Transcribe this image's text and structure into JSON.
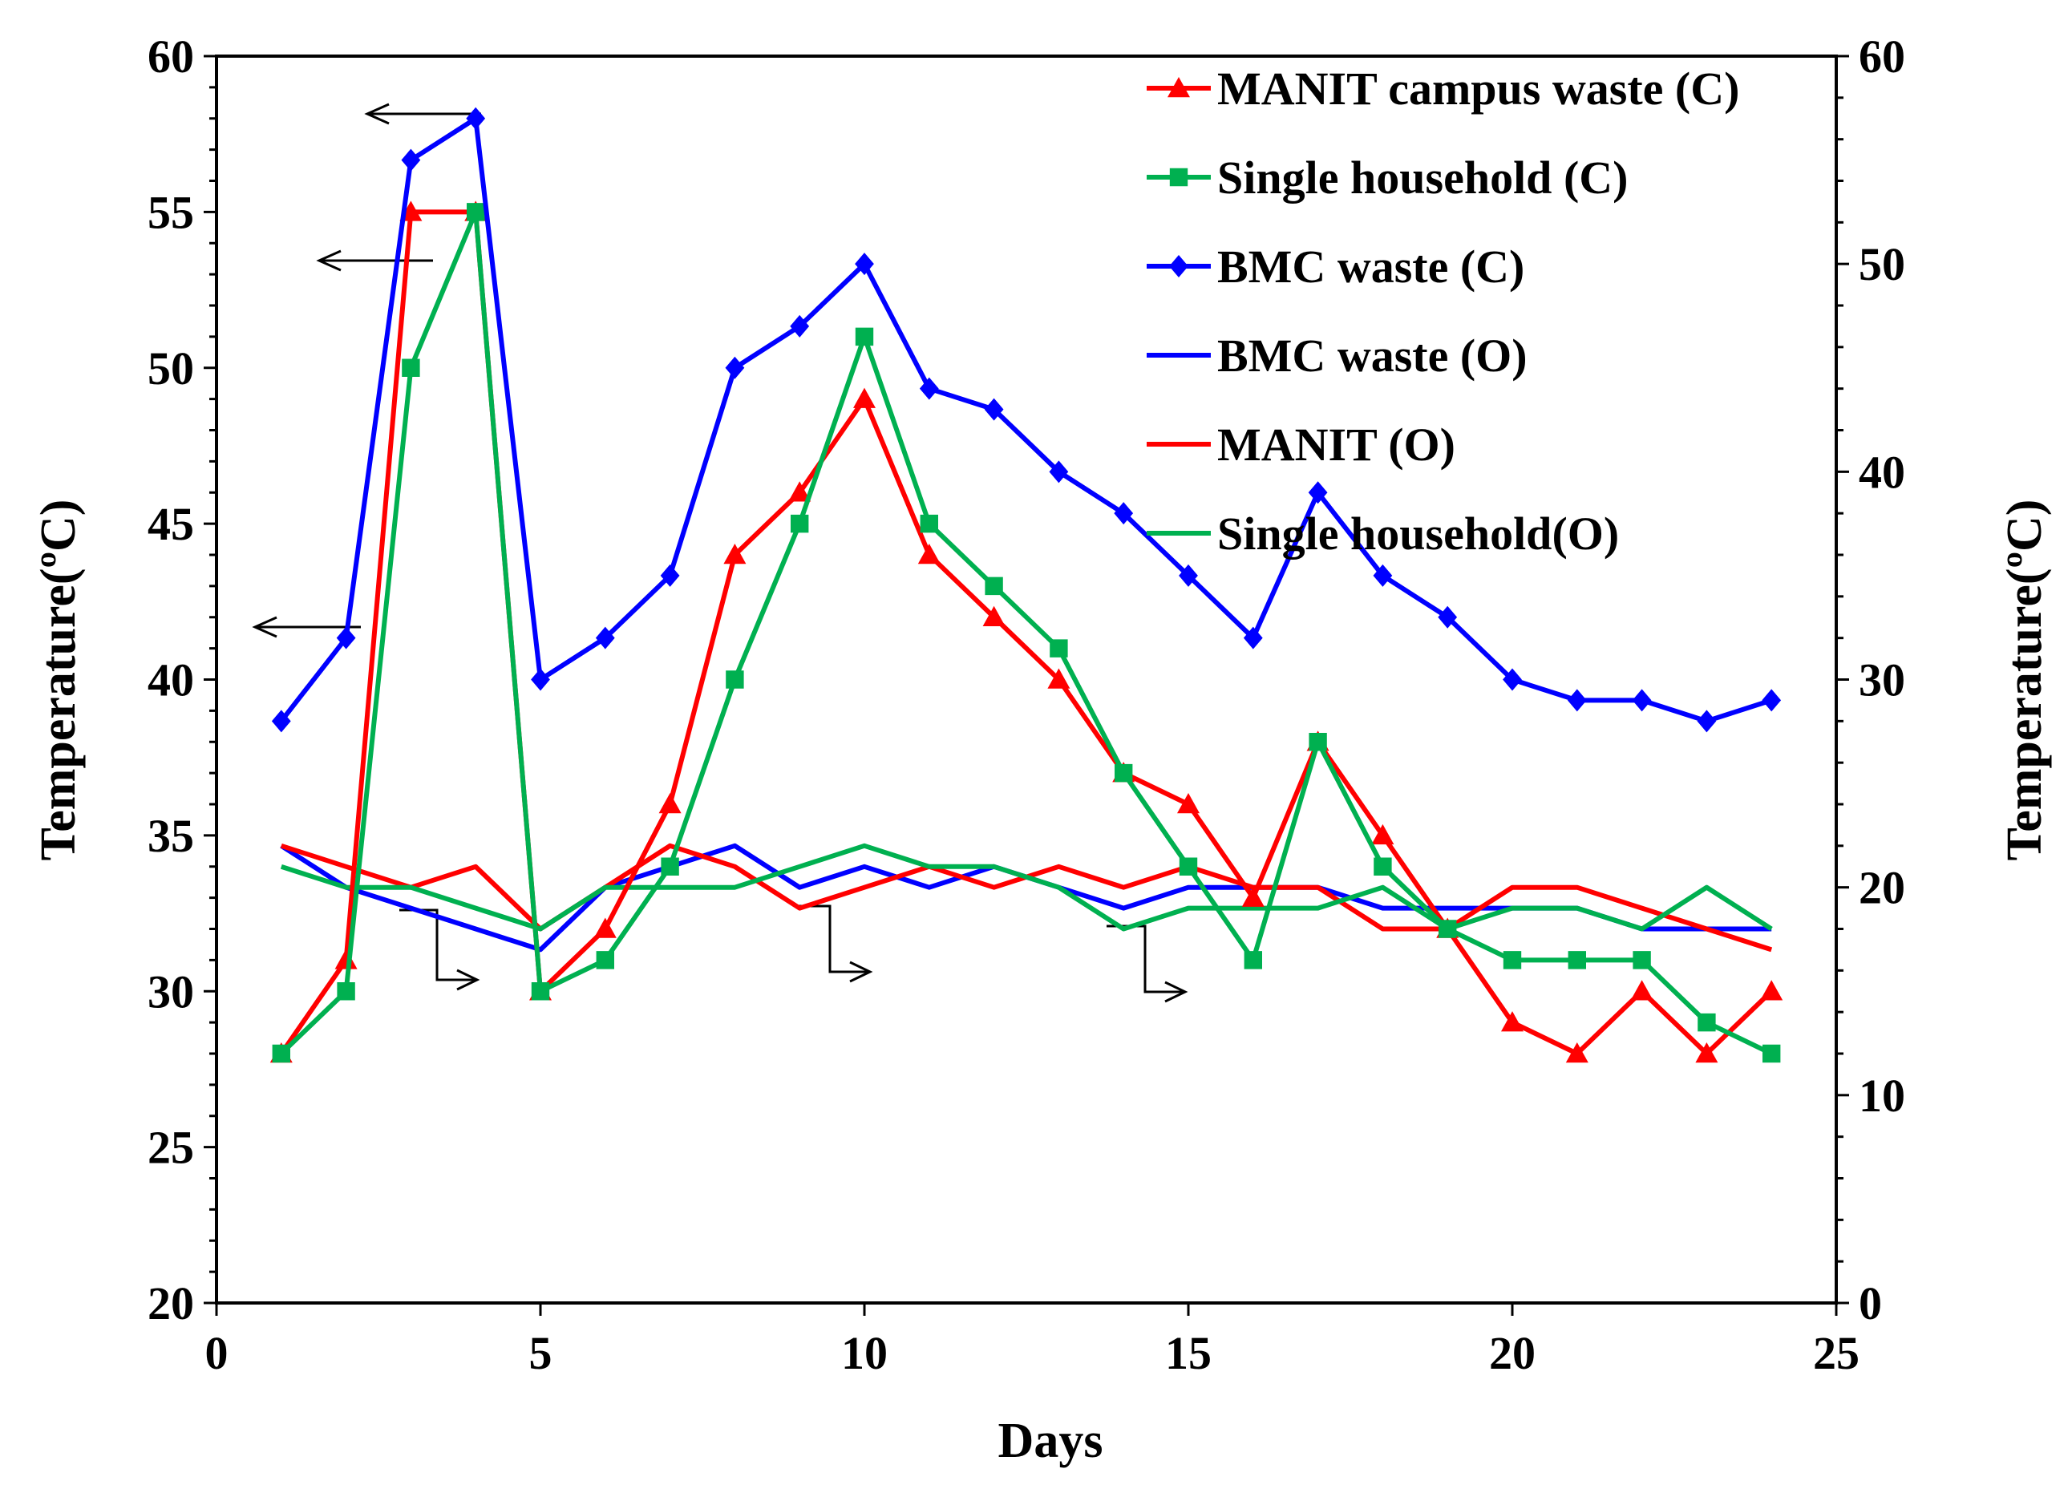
{
  "chart_data": {
    "type": "line",
    "xlabel": "Days",
    "ylabel_left": "Temperature(ºC)",
    "ylabel_right": "Temperature(ºC)",
    "xlim": [
      0,
      25
    ],
    "ylim_left": [
      20,
      60
    ],
    "ylim_right": [
      0,
      60
    ],
    "xticks": [
      0,
      5,
      10,
      15,
      20,
      25
    ],
    "yticks_left": [
      20,
      25,
      30,
      35,
      40,
      45,
      50,
      55,
      60
    ],
    "yticks_right": [
      0,
      10,
      20,
      30,
      40,
      50,
      60
    ],
    "grid": false,
    "legend_position": "top-right",
    "x": [
      1,
      2,
      3,
      4,
      5,
      6,
      7,
      8,
      9,
      10,
      11,
      12,
      13,
      14,
      15,
      16,
      17,
      18,
      19,
      20,
      21,
      22,
      23,
      24
    ],
    "series": [
      {
        "name": "MANIT campus waste (C)",
        "axis": "left",
        "color": "#ff0000",
        "marker": "triangle",
        "values": [
          28,
          31,
          55,
          55,
          30,
          32,
          36,
          44,
          46,
          49,
          44,
          42,
          40,
          37,
          36,
          33,
          38,
          35,
          32,
          29,
          28,
          30,
          28,
          30
        ]
      },
      {
        "name": "Single household (C)",
        "axis": "left",
        "color": "#00b050",
        "marker": "square",
        "values": [
          28,
          30,
          50,
          55,
          30,
          31,
          34,
          40,
          45,
          51,
          45,
          43,
          41,
          37,
          34,
          31,
          38,
          34,
          32,
          31,
          31,
          31,
          29,
          28
        ]
      },
      {
        "name": "BMC waste (C)",
        "axis": "right",
        "color": "#0000ff",
        "marker": "diamond",
        "values": [
          28,
          32,
          55,
          57,
          30,
          32,
          35,
          45,
          47,
          50,
          44,
          43,
          40,
          38,
          35,
          32,
          39,
          35,
          33,
          30,
          29,
          29,
          28,
          29
        ]
      },
      {
        "name": "BMC waste (O)",
        "axis": "right",
        "color": "#0000ff",
        "marker": "none",
        "values": [
          22,
          20,
          19,
          18,
          17,
          20,
          21,
          22,
          20,
          21,
          20,
          21,
          20,
          19,
          20,
          20,
          20,
          19,
          19,
          19,
          19,
          18,
          18,
          18
        ]
      },
      {
        "name": "MANIT (O)",
        "axis": "right",
        "color": "#ff0000",
        "marker": "none",
        "values": [
          22,
          21,
          20,
          21,
          18,
          20,
          22,
          21,
          19,
          20,
          21,
          20,
          21,
          20,
          21,
          20,
          20,
          18,
          18,
          20,
          20,
          19,
          18,
          17
        ]
      },
      {
        "name": "Single household(O)",
        "axis": "right",
        "color": "#00b050",
        "marker": "none",
        "values": [
          21,
          20,
          20,
          19,
          18,
          20,
          20,
          20,
          21,
          22,
          21,
          21,
          20,
          18,
          19,
          19,
          19,
          20,
          18,
          19,
          19,
          18,
          20,
          18
        ]
      }
    ]
  }
}
